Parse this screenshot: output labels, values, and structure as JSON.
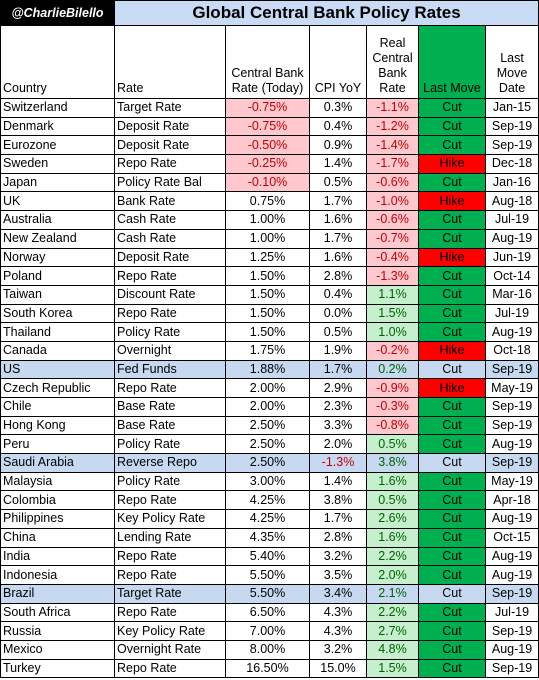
{
  "handle": "@CharlieBilello",
  "title": "Global Central Bank Policy Rates",
  "headers": {
    "country": "Country",
    "rate": "Rate",
    "cb_rate": "Central Bank Rate (Today)",
    "cpi": "CPI YoY",
    "real": "Real Central Bank Rate",
    "last_move": "Last Move",
    "last_move_date": "Last Move Date"
  },
  "colors": {
    "cut": "#00b050",
    "hike": "#ff0000",
    "highlight": "#c6d9f1",
    "negative_fill": "#ffc7ce",
    "positive_fill": "#c6efce",
    "title_fill": "#c9daf5"
  },
  "chart_data": {
    "type": "table",
    "rows": [
      {
        "country": "Switzerland",
        "rate": "Target Rate",
        "cb_rate": "-0.75%",
        "cpi": "0.3%",
        "real": "-1.1%",
        "move": "Cut",
        "date": "Jan-15"
      },
      {
        "country": "Denmark",
        "rate": "Deposit Rate",
        "cb_rate": "-0.75%",
        "cpi": "0.4%",
        "real": "-1.2%",
        "move": "Cut",
        "date": "Sep-19"
      },
      {
        "country": "Eurozone",
        "rate": "Deposit Rate",
        "cb_rate": "-0.50%",
        "cpi": "0.9%",
        "real": "-1.4%",
        "move": "Cut",
        "date": "Sep-19"
      },
      {
        "country": "Sweden",
        "rate": "Repo Rate",
        "cb_rate": "-0.25%",
        "cpi": "1.4%",
        "real": "-1.7%",
        "move": "Hike",
        "date": "Dec-18"
      },
      {
        "country": "Japan",
        "rate": "Policy Rate Bal",
        "cb_rate": "-0.10%",
        "cpi": "0.5%",
        "real": "-0.6%",
        "move": "Cut",
        "date": "Jan-16"
      },
      {
        "country": "UK",
        "rate": "Bank Rate",
        "cb_rate": "0.75%",
        "cpi": "1.7%",
        "real": "-1.0%",
        "move": "Hike",
        "date": "Aug-18"
      },
      {
        "country": "Australia",
        "rate": "Cash Rate",
        "cb_rate": "1.00%",
        "cpi": "1.6%",
        "real": "-0.6%",
        "move": "Cut",
        "date": "Jul-19"
      },
      {
        "country": "New Zealand",
        "rate": "Cash Rate",
        "cb_rate": "1.00%",
        "cpi": "1.7%",
        "real": "-0.7%",
        "move": "Cut",
        "date": "Aug-19"
      },
      {
        "country": "Norway",
        "rate": "Deposit Rate",
        "cb_rate": "1.25%",
        "cpi": "1.6%",
        "real": "-0.4%",
        "move": "Hike",
        "date": "Jun-19"
      },
      {
        "country": "Poland",
        "rate": "Repo Rate",
        "cb_rate": "1.50%",
        "cpi": "2.8%",
        "real": "-1.3%",
        "move": "Cut",
        "date": "Oct-14"
      },
      {
        "country": "Taiwan",
        "rate": "Discount Rate",
        "cb_rate": "1.50%",
        "cpi": "0.4%",
        "real": "1.1%",
        "move": "Cut",
        "date": "Mar-16"
      },
      {
        "country": "South Korea",
        "rate": "Repo Rate",
        "cb_rate": "1.50%",
        "cpi": "0.0%",
        "real": "1.5%",
        "move": "Cut",
        "date": "Jul-19"
      },
      {
        "country": "Thailand",
        "rate": "Policy Rate",
        "cb_rate": "1.50%",
        "cpi": "0.5%",
        "real": "1.0%",
        "move": "Cut",
        "date": "Aug-19"
      },
      {
        "country": "Canada",
        "rate": "Overnight",
        "cb_rate": "1.75%",
        "cpi": "1.9%",
        "real": "-0.2%",
        "move": "Hike",
        "date": "Oct-18"
      },
      {
        "country": "US",
        "rate": "Fed Funds",
        "cb_rate": "1.88%",
        "cpi": "1.7%",
        "real": "0.2%",
        "move": "Cut",
        "date": "Sep-19",
        "highlight": true
      },
      {
        "country": "Czech Republic",
        "rate": "Repo Rate",
        "cb_rate": "2.00%",
        "cpi": "2.9%",
        "real": "-0.9%",
        "move": "Hike",
        "date": "May-19"
      },
      {
        "country": "Chile",
        "rate": "Base Rate",
        "cb_rate": "2.00%",
        "cpi": "2.3%",
        "real": "-0.3%",
        "move": "Cut",
        "date": "Sep-19"
      },
      {
        "country": "Hong Kong",
        "rate": "Base Rate",
        "cb_rate": "2.50%",
        "cpi": "3.3%",
        "real": "-0.8%",
        "move": "Cut",
        "date": "Sep-19"
      },
      {
        "country": "Peru",
        "rate": "Policy Rate",
        "cb_rate": "2.50%",
        "cpi": "2.0%",
        "real": "0.5%",
        "move": "Cut",
        "date": "Aug-19"
      },
      {
        "country": "Saudi Arabia",
        "rate": "Reverse Repo",
        "cb_rate": "2.50%",
        "cpi": "-1.3%",
        "real": "3.8%",
        "move": "Cut",
        "date": "Sep-19",
        "highlight": true
      },
      {
        "country": "Malaysia",
        "rate": "Policy Rate",
        "cb_rate": "3.00%",
        "cpi": "1.4%",
        "real": "1.6%",
        "move": "Cut",
        "date": "May-19"
      },
      {
        "country": "Colombia",
        "rate": "Repo Rate",
        "cb_rate": "4.25%",
        "cpi": "3.8%",
        "real": "0.5%",
        "move": "Cut",
        "date": "Apr-18"
      },
      {
        "country": "Philippines",
        "rate": "Key Policy Rate",
        "cb_rate": "4.25%",
        "cpi": "1.7%",
        "real": "2.6%",
        "move": "Cut",
        "date": "Aug-19"
      },
      {
        "country": "China",
        "rate": "Lending Rate",
        "cb_rate": "4.35%",
        "cpi": "2.8%",
        "real": "1.6%",
        "move": "Cut",
        "date": "Oct-15"
      },
      {
        "country": "India",
        "rate": "Repo Rate",
        "cb_rate": "5.40%",
        "cpi": "3.2%",
        "real": "2.2%",
        "move": "Cut",
        "date": "Aug-19"
      },
      {
        "country": "Indonesia",
        "rate": "Repo Rate",
        "cb_rate": "5.50%",
        "cpi": "3.5%",
        "real": "2.0%",
        "move": "Cut",
        "date": "Aug-19"
      },
      {
        "country": "Brazil",
        "rate": "Target Rate",
        "cb_rate": "5.50%",
        "cpi": "3.4%",
        "real": "2.1%",
        "move": "Cut",
        "date": "Sep-19",
        "highlight": true
      },
      {
        "country": "South Africa",
        "rate": "Repo Rate",
        "cb_rate": "6.50%",
        "cpi": "4.3%",
        "real": "2.2%",
        "move": "Cut",
        "date": "Jul-19"
      },
      {
        "country": "Russia",
        "rate": "Key Policy Rate",
        "cb_rate": "7.00%",
        "cpi": "4.3%",
        "real": "2.7%",
        "move": "Cut",
        "date": "Sep-19"
      },
      {
        "country": "Mexico",
        "rate": "Overnight Rate",
        "cb_rate": "8.00%",
        "cpi": "3.2%",
        "real": "4.8%",
        "move": "Cut",
        "date": "Aug-19"
      },
      {
        "country": "Turkey",
        "rate": "Repo Rate",
        "cb_rate": "16.50%",
        "cpi": "15.0%",
        "real": "1.5%",
        "move": "Cut",
        "date": "Sep-19"
      }
    ]
  }
}
